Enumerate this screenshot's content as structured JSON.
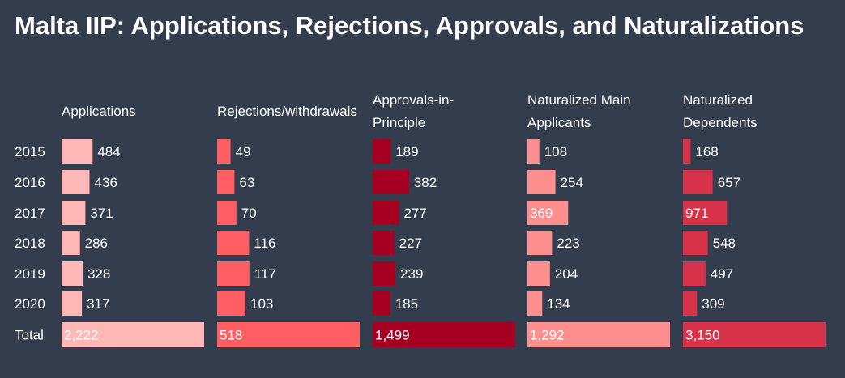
{
  "title": "Malta IIP: Applications, Rejections, Approvals, and Naturalizations",
  "chart_data": {
    "type": "table",
    "rows": [
      "2015",
      "2016",
      "2017",
      "2018",
      "2019",
      "2020"
    ],
    "total_label": "Total",
    "columns": [
      {
        "name": "Applications",
        "header_lines": [
          "Applications"
        ],
        "color": "#ffb8b5",
        "values": [
          484,
          436,
          371,
          286,
          328,
          317
        ],
        "total": 2222,
        "total_label": "2,222"
      },
      {
        "name": "Rejections/withdrawals",
        "header_lines": [
          "Rejections/withdrawals"
        ],
        "color": "#ff5f63",
        "values": [
          49,
          63,
          70,
          116,
          117,
          103
        ],
        "total": 518,
        "total_label": "518"
      },
      {
        "name": "Approvals-in-Principle",
        "header_lines": [
          "Approvals-in-",
          "Principle"
        ],
        "color": "#a50022",
        "values": [
          189,
          382,
          277,
          227,
          239,
          185
        ],
        "total": 1499,
        "total_label": "1,499"
      },
      {
        "name": "Naturalized Main Applicants",
        "header_lines": [
          "Naturalized Main",
          "Applicants"
        ],
        "color": "#ff8f8e",
        "values": [
          108,
          254,
          369,
          223,
          204,
          134
        ],
        "total": 1292,
        "total_label": "1,292"
      },
      {
        "name": "Naturalized Dependents",
        "header_lines": [
          "Naturalized",
          "Dependents"
        ],
        "color": "#d6334a",
        "values": [
          168,
          657,
          971,
          548,
          497,
          309
        ],
        "total": 3150,
        "total_label": "3,150"
      }
    ]
  }
}
